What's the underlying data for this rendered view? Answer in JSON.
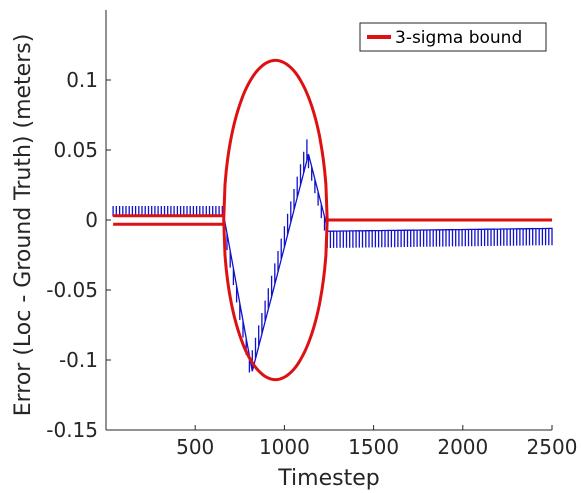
{
  "chart_data": {
    "type": "line",
    "title": "",
    "xlabel": "Timestep",
    "ylabel": "Error (Loc - Ground Truth) (meters)",
    "xlim": [
      0,
      2500
    ],
    "ylim": [
      -0.15,
      0.15
    ],
    "xticks": [
      500,
      1000,
      1500,
      2000,
      2500
    ],
    "yticks": [
      0.1,
      0.05,
      0,
      -0.05,
      -0.1,
      -0.15
    ],
    "ytick_labels": [
      "0.1",
      "0.05",
      "0",
      "-0.05",
      "-0.1",
      "-0.15"
    ],
    "grid": false,
    "legend": {
      "position": "top-right",
      "entries": [
        "3-sigma bound"
      ]
    },
    "series": [
      {
        "name": "3-sigma bound",
        "color": "#dd1111",
        "kind": "sigma-bound",
        "flat_before": {
          "x": [
            40,
            660
          ],
          "upper": 0.003,
          "lower": -0.003
        },
        "ellipse": {
          "x_start": 660,
          "x_end": 1240,
          "x_center": 950,
          "amplitude": 0.114
        },
        "flat_after": {
          "x": [
            1240,
            2500
          ],
          "upper": 0.0,
          "lower": 0.0
        }
      },
      {
        "name": "",
        "color": "#1111cc",
        "kind": "error",
        "segments": [
          {
            "x": [
              40,
              660
            ],
            "y": [
              0.003,
              0.003
            ],
            "spike": 0.007
          },
          {
            "x": [
              660,
              820
            ],
            "y": [
              0.003,
              -0.108
            ],
            "spike": -0.012
          },
          {
            "x": [
              820,
              1135
            ],
            "y": [
              -0.108,
              0.047
            ],
            "spike": 0.015
          },
          {
            "x": [
              1135,
              1240
            ],
            "y": [
              0.047,
              -0.005
            ],
            "spike": -0.01
          },
          {
            "x": [
              1240,
              2500
            ],
            "y": [
              -0.008,
              -0.006
            ],
            "spike": -0.012
          }
        ]
      }
    ]
  }
}
